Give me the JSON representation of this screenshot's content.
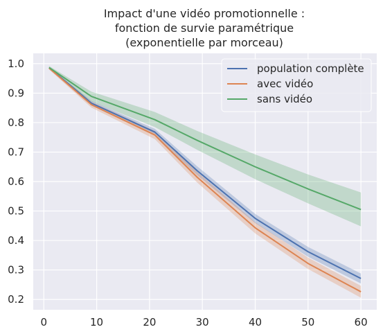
{
  "chart_data": {
    "type": "line",
    "title_lines": [
      "Impact d'une vidéo promotionnelle :",
      "fonction de survie paramétrique",
      "(exponentielle par morceau)"
    ],
    "xlabel": "",
    "ylabel": "",
    "xlim": [
      -2,
      63
    ],
    "ylim": [
      0.165,
      1.035
    ],
    "xticks": [
      0,
      10,
      20,
      30,
      40,
      50,
      60
    ],
    "yticks": [
      0.2,
      0.3,
      0.4,
      0.5,
      0.6,
      0.7,
      0.8,
      0.9,
      1.0
    ],
    "ytick_labels": [
      "0.2",
      "0.3",
      "0.4",
      "0.5",
      "0.6",
      "0.7",
      "0.8",
      "0.9",
      "1.0"
    ],
    "grid": true,
    "legend_position": "top-right",
    "x": [
      1,
      9,
      21,
      29,
      40,
      50,
      60
    ],
    "series": [
      {
        "name": "population complète",
        "color": "#4c72b0",
        "values": [
          0.986,
          0.866,
          0.768,
          0.637,
          0.475,
          0.362,
          0.271
        ],
        "lower": [
          0.983,
          0.858,
          0.756,
          0.622,
          0.459,
          0.345,
          0.254
        ],
        "upper": [
          0.989,
          0.874,
          0.779,
          0.652,
          0.49,
          0.378,
          0.288
        ]
      },
      {
        "name": "avec vidéo",
        "color": "#dd8452",
        "values": [
          0.985,
          0.861,
          0.758,
          0.615,
          0.443,
          0.322,
          0.226
        ],
        "lower": [
          0.98,
          0.851,
          0.744,
          0.597,
          0.424,
          0.303,
          0.206
        ],
        "upper": [
          0.989,
          0.871,
          0.772,
          0.633,
          0.462,
          0.342,
          0.246
        ]
      },
      {
        "name": "sans vidéo",
        "color": "#55a868",
        "values": [
          0.987,
          0.889,
          0.81,
          0.74,
          0.65,
          0.575,
          0.505
        ],
        "lower": [
          0.981,
          0.872,
          0.785,
          0.708,
          0.608,
          0.526,
          0.448
        ],
        "upper": [
          0.992,
          0.905,
          0.836,
          0.772,
          0.692,
          0.624,
          0.563
        ]
      }
    ]
  }
}
